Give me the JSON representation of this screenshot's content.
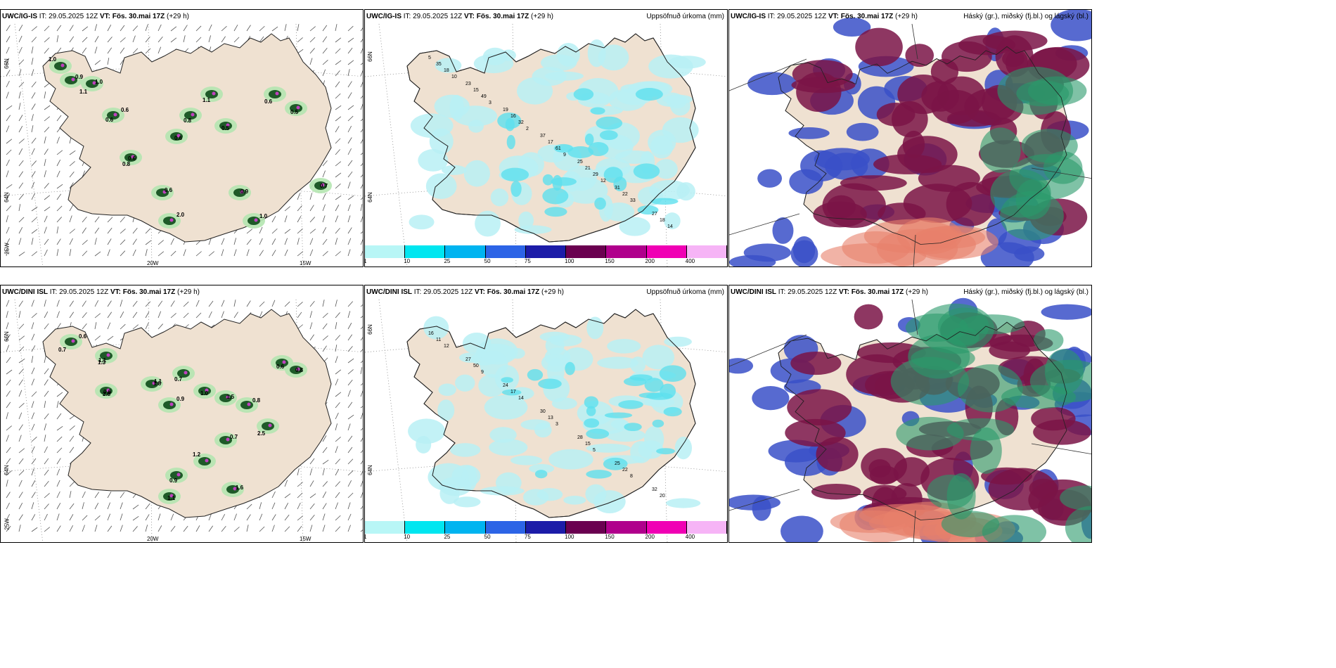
{
  "rows": [
    {
      "model": "UWC/IG-IS",
      "it_label": "IT:",
      "it": "29.05.2025 12Z",
      "vt_label": "VT:",
      "vt": "Fös. 30.mai 17Z",
      "lead": "(+29 h)"
    },
    {
      "model": "UWC/DINI ISL",
      "it_label": "IT:",
      "it": "29.05.2025 12Z",
      "vt_label": "VT:",
      "vt": "Fös. 30.mai 17Z",
      "lead": "(+29 h)"
    }
  ],
  "precip_title": "Uppsöfnuð úrkoma (mm)",
  "cloud_title": "Háský (gr.), miðský (fj.bl.) og lágský (bl.)",
  "axes": {
    "lat66": "66N",
    "lat64": "64N",
    "lon25": "25W",
    "lon20": "20W",
    "lon15": "15W"
  },
  "colorbar": {
    "labels": [
      "1",
      "10",
      "25",
      "50",
      "75",
      "100",
      "150",
      "200",
      "400"
    ],
    "colors": [
      "#b8f6f6",
      "#00e6f0",
      "#00b4f0",
      "#2c64e6",
      "#1c1ca8",
      "#6a0050",
      "#b0008c",
      "#f000b4",
      "#f6b4f6"
    ]
  },
  "palette": {
    "land": "#efe1d1",
    "precip_light": "#b8f0f4",
    "precip_mid": "#5ee0ee",
    "convect_light": "#b4e6b0",
    "convect_dark": "#1e5a28",
    "high_cloud": "#3a50c8",
    "mid_cloud": "#7a1446",
    "low_cloud": "#2a9a6a",
    "warm_cloud": "#e8806a"
  },
  "labels": {
    "r1_left": [
      "1.1",
      "0.6",
      "0.6",
      "0.6",
      "2.0",
      "1.1",
      "0.5",
      "0.9",
      "1.0",
      "0.6",
      "0.5",
      "0.7",
      "0.9",
      "1.0",
      "0.8",
      "0.6",
      "1.0",
      "0.6",
      "0.8"
    ],
    "r1_mid": [
      "5",
      "23",
      "19",
      "37",
      "25",
      "31",
      "27",
      "35",
      "15",
      "16",
      "17",
      "21",
      "22",
      "18",
      "18",
      "49",
      "32",
      "61",
      "29",
      "33",
      "14",
      "10",
      "3",
      "2",
      "9",
      "12"
    ],
    "r2_left": [
      "0.7",
      "1.1",
      "0.6",
      "1.1",
      "0.9",
      "0.7",
      "1.0",
      "1.5",
      "0.8",
      "2.5",
      "0.6",
      "0.8",
      "0.7",
      "1.2",
      "0.9",
      "1.1",
      "1.6",
      "0.6",
      "1.3",
      "2.8",
      "1.8"
    ],
    "r2_mid": [
      "16",
      "27",
      "24",
      "30",
      "28",
      "25",
      "32",
      "11",
      "50",
      "17",
      "13",
      "15",
      "22",
      "20",
      "12",
      "9",
      "14",
      "3",
      "5",
      "8"
    ]
  }
}
